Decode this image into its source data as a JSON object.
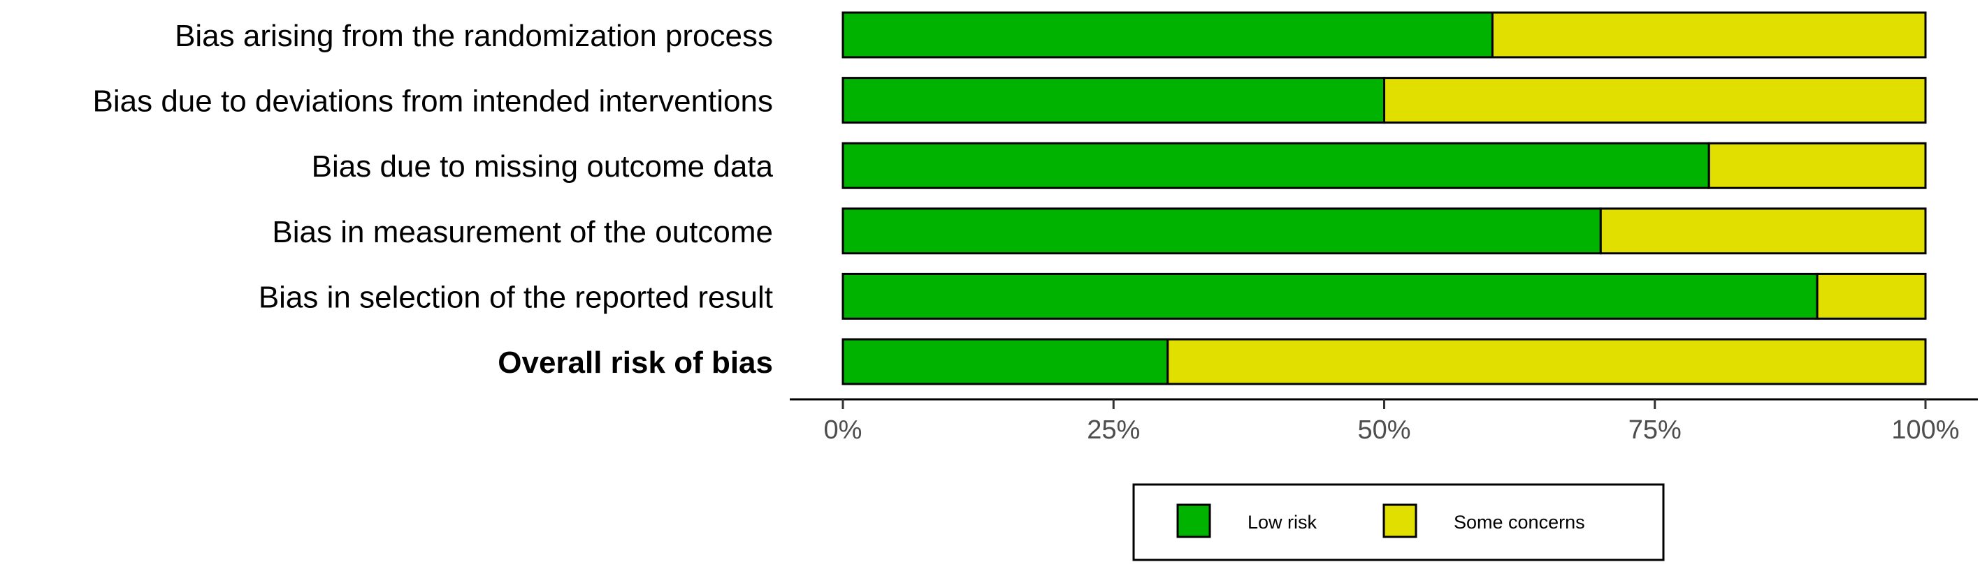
{
  "chart_data": {
    "type": "bar",
    "stacked": true,
    "orientation": "horizontal",
    "categories": [
      "Bias arising from the randomization process",
      "Bias due to deviations from intended interventions",
      "Bias due to missing outcome data",
      "Bias in measurement of the outcome",
      "Bias in selection of the reported result",
      "Overall risk of bias"
    ],
    "bold_category": "Overall risk of bias",
    "series": [
      {
        "name": "Low risk",
        "color": "#00b300",
        "values": [
          60,
          50,
          80,
          70,
          90,
          30
        ]
      },
      {
        "name": "Some concerns",
        "color": "#e0df00",
        "values": [
          40,
          50,
          20,
          30,
          10,
          70
        ]
      }
    ],
    "xlim": [
      0,
      100
    ],
    "xticks": [
      0,
      25,
      50,
      75,
      100
    ],
    "xtick_labels": [
      "0%",
      "25%",
      "50%",
      "75%",
      "100%"
    ],
    "grid": false,
    "legend_position": "bottom"
  }
}
